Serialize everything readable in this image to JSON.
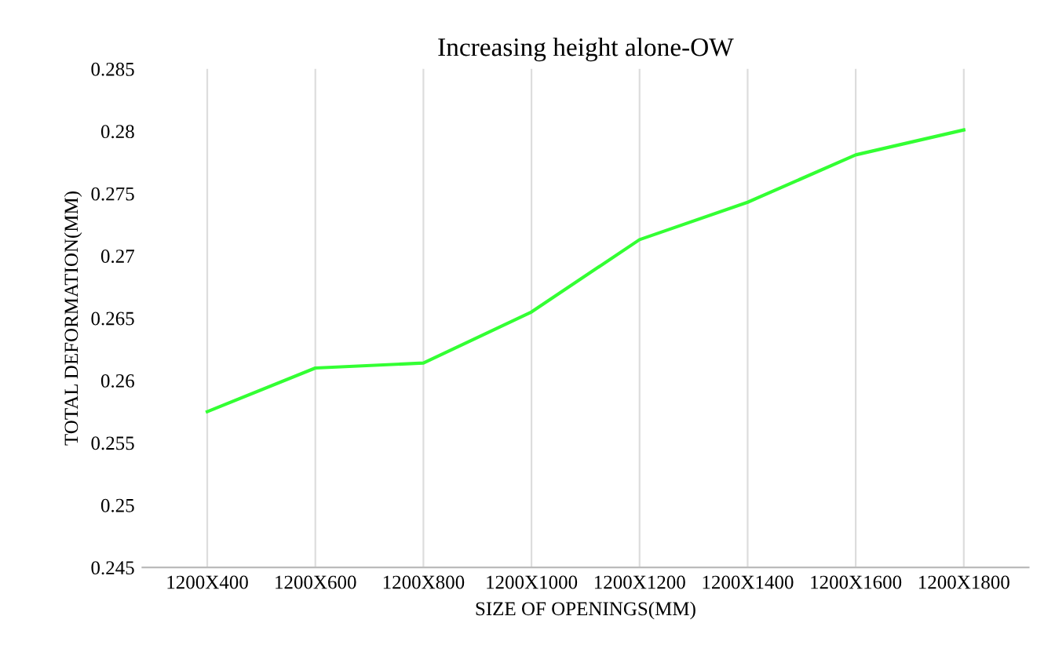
{
  "chart_data": {
    "type": "line",
    "title": "Increasing height alone-OW",
    "xlabel": "SIZE OF OPENINGS(MM)",
    "ylabel": "TOTAL DEFORMATION(MM)",
    "categories": [
      "1200X400",
      "1200X600",
      "1200X800",
      "1200X1000",
      "1200X1200",
      "1200X1400",
      "1200X1600",
      "1200X1800"
    ],
    "series": [
      {
        "color": "#33ff33",
        "values": [
          0.2575,
          0.261,
          0.2614,
          0.2655,
          0.2713,
          0.2743,
          0.2781,
          0.2801
        ]
      }
    ],
    "ylim": [
      0.245,
      0.285
    ],
    "yticks": [
      0.245,
      0.25,
      0.255,
      0.26,
      0.265,
      0.27,
      0.275,
      0.28,
      0.285
    ],
    "grid": "x",
    "marker": "none",
    "line_style": "solid",
    "legend": false
  }
}
